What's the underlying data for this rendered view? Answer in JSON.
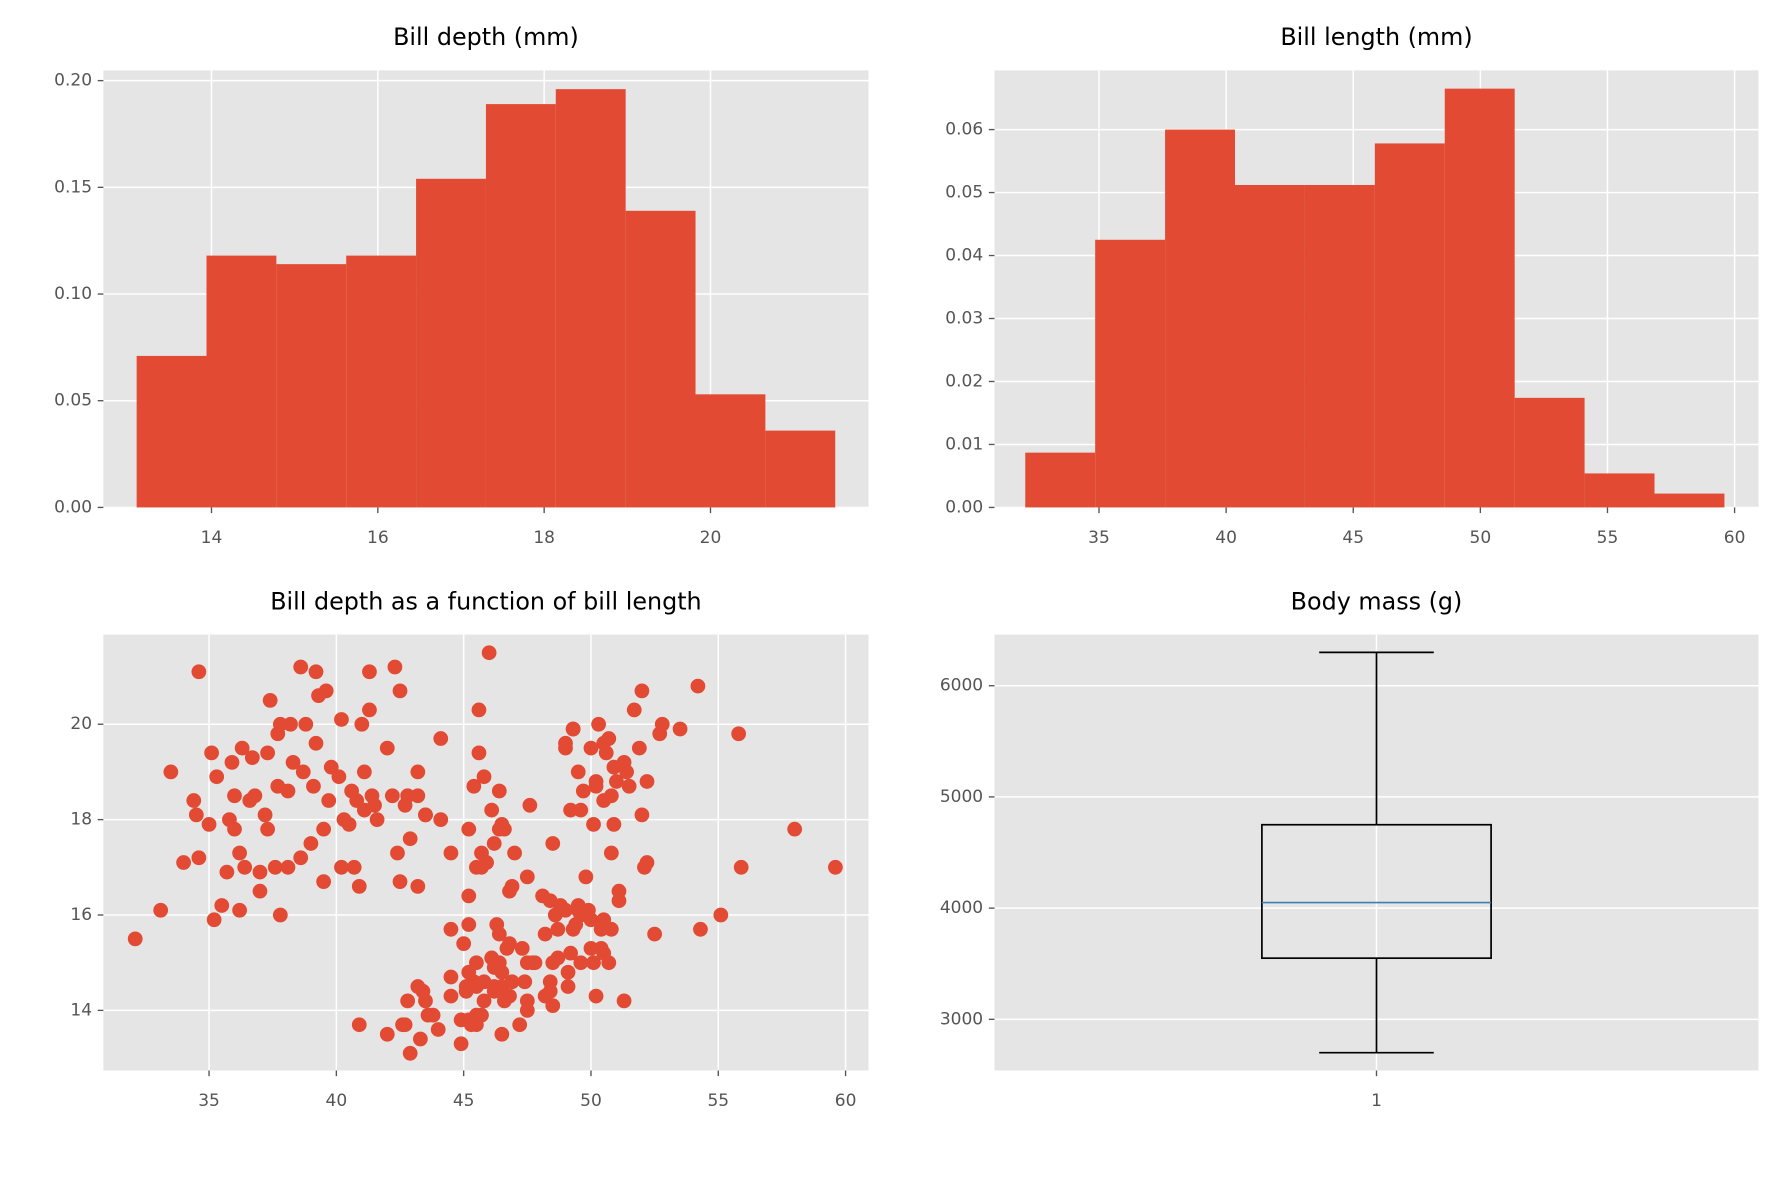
{
  "chart_data": [
    {
      "type": "histogram",
      "title": "Bill depth (mm)",
      "color": "#e24a33",
      "bins": [
        13.1,
        13.94,
        14.78,
        15.62,
        16.46,
        17.3,
        18.14,
        18.98,
        19.82,
        20.66,
        21.5
      ],
      "values": [
        0.071,
        0.118,
        0.114,
        0.118,
        0.154,
        0.189,
        0.196,
        0.139,
        0.053,
        0.036
      ],
      "xlim": [
        12.7,
        21.9
      ],
      "xticks": [
        14,
        16,
        18,
        20
      ],
      "ylim": [
        0,
        0.2048
      ],
      "yticks": [
        {
          "value": 0,
          "label": "0.00"
        },
        0.05,
        {
          "value": 0.1,
          "label": "0.10"
        },
        0.15,
        {
          "value": 0.2,
          "label": "0.20"
        }
      ],
      "grid": true
    },
    {
      "type": "histogram",
      "title": "Bill length (mm)",
      "color": "#e24a33",
      "bins": [
        32.1,
        34.85,
        37.6,
        40.35,
        43.1,
        45.85,
        48.6,
        51.35,
        54.1,
        56.85,
        59.6
      ],
      "values": [
        0.0087,
        0.0425,
        0.06,
        0.0512,
        0.0512,
        0.0578,
        0.0665,
        0.0174,
        0.0054,
        0.0022
      ],
      "xlim": [
        30.89,
        60.94
      ],
      "xticks": [
        35,
        40,
        45,
        50,
        55,
        60
      ],
      "ylim": [
        0,
        0.0694
      ],
      "yticks": [
        {
          "value": 0,
          "label": "0.00"
        },
        0.01,
        0.02,
        0.03,
        0.04,
        0.05,
        0.06
      ],
      "grid": true
    },
    {
      "type": "scatter",
      "title": "Bill depth as a function of bill length",
      "color": "#e24a33",
      "x": [
        32.1,
        33.1,
        33.5,
        34.0,
        34.4,
        34.5,
        34.6,
        34.6,
        35.0,
        35.1,
        35.2,
        35.3,
        35.5,
        35.7,
        35.8,
        35.9,
        36.0,
        36.0,
        36.2,
        36.2,
        36.3,
        36.4,
        36.6,
        36.7,
        36.8,
        37.0,
        37.0,
        37.2,
        37.3,
        37.3,
        37.4,
        37.6,
        37.7,
        37.7,
        37.8,
        37.8,
        38.1,
        38.1,
        38.2,
        38.3,
        38.6,
        38.6,
        38.7,
        38.8,
        39.0,
        39.1,
        39.2,
        39.2,
        39.3,
        39.5,
        39.5,
        39.6,
        39.7,
        39.8,
        40.1,
        40.2,
        40.2,
        40.3,
        40.5,
        40.6,
        40.7,
        40.8,
        40.9,
        41.0,
        41.1,
        41.1,
        41.3,
        41.3,
        41.4,
        41.5,
        41.6,
        42.0,
        42.2,
        42.3,
        42.4,
        42.5,
        42.7,
        42.8,
        42.9,
        43.2,
        43.2,
        43.5,
        44.1,
        44.1,
        44.5,
        45.2,
        45.4,
        45.5,
        45.6,
        45.6,
        45.8,
        46.0,
        46.1,
        46.4,
        46.5,
        46.6,
        46.8,
        47.0,
        47.5,
        48.1,
        48.5,
        49.0,
        49.2,
        49.3,
        49.5,
        49.7,
        50.0,
        50.2,
        50.3,
        50.5,
        50.6,
        50.8,
        50.9,
        51.0,
        51.3,
        51.5,
        51.7,
        52.0,
        52.0,
        52.2,
        52.7,
        53.5,
        54.2,
        55.8,
        58.0,
        59.6,
        55.9,
        50.5,
        45.1,
        46.5,
        45.4,
        46.7,
        43.3,
        46.8,
        40.9,
        49.0,
        45.5,
        48.4,
        45.8,
        49.3,
        42.0,
        49.2,
        46.2,
        48.7,
        50.2,
        46.5,
        46.3,
        42.9,
        46.1,
        44.5,
        47.8,
        48.2,
        50.0,
        47.3,
        42.8,
        49.1,
        48.4,
        42.6,
        44.0,
        48.7,
        42.7,
        49.6,
        45.3,
        49.6,
        43.6,
        45.5,
        50.5,
        44.9,
        45.2,
        46.6,
        48.5,
        45.1,
        50.1,
        46.5,
        45.0,
        43.8,
        45.5,
        43.2,
        50.4,
        45.3,
        46.2,
        45.7,
        54.3,
        45.8,
        49.8,
        46.2,
        49.5,
        43.5,
        50.7,
        47.7,
        46.4,
        48.2,
        46.5,
        46.4,
        48.6,
        47.5,
        51.1,
        45.2,
        45.2,
        49.1,
        52.5,
        47.4,
        50.0,
        44.9,
        50.8,
        43.4,
        51.3,
        47.5,
        52.1,
        47.5,
        52.2,
        45.5,
        49.5,
        44.5,
        50.8,
        49.4,
        46.9,
        48.4,
        51.1,
        48.5,
        55.1,
        44.5,
        48.8,
        47.2,
        46.8,
        50.4,
        45.2,
        49.9,
        45.9,
        46.4,
        43.2,
        50.5,
        52.8,
        42.5,
        47.6,
        46.9,
        46.2,
        50.9,
        50.1,
        49.0,
        51.4,
        45.7,
        50.7,
        49.3,
        51.9,
        45.7,
        43.5,
        49.6,
        50.2
      ],
      "y": [
        15.5,
        16.1,
        19.0,
        17.1,
        18.4,
        18.1,
        21.1,
        17.2,
        17.9,
        19.4,
        15.9,
        18.9,
        16.2,
        16.9,
        18.0,
        19.2,
        17.8,
        18.5,
        17.3,
        16.1,
        19.5,
        17.0,
        18.4,
        19.3,
        18.5,
        16.5,
        16.9,
        18.1,
        17.8,
        19.4,
        20.5,
        17.0,
        18.7,
        19.8,
        16.0,
        20.0,
        17.0,
        18.6,
        20.0,
        19.2,
        21.2,
        17.2,
        19.0,
        20.0,
        17.5,
        18.7,
        21.1,
        19.6,
        20.6,
        16.7,
        17.8,
        20.7,
        18.4,
        19.1,
        18.9,
        17.0,
        20.1,
        18.0,
        17.9,
        18.6,
        17.0,
        18.4,
        16.6,
        20.0,
        18.2,
        19.0,
        20.3,
        21.1,
        18.5,
        18.3,
        18.0,
        19.5,
        18.5,
        21.2,
        17.3,
        20.7,
        18.3,
        18.5,
        17.6,
        18.5,
        19.0,
        18.1,
        19.7,
        18.0,
        17.3,
        17.8,
        18.7,
        17.0,
        19.4,
        20.3,
        18.9,
        21.5,
        18.2,
        17.8,
        17.9,
        17.8,
        16.5,
        17.3,
        16.8,
        16.4,
        17.5,
        19.5,
        18.2,
        19.9,
        19.0,
        18.6,
        19.5,
        18.8,
        20.0,
        19.6,
        19.4,
        18.5,
        19.1,
        18.8,
        19.2,
        18.7,
        20.3,
        18.1,
        20.7,
        18.8,
        19.8,
        19.9,
        20.8,
        19.8,
        17.8,
        17.0,
        17.0,
        15.9,
        14.5,
        13.5,
        14.6,
        15.3,
        13.4,
        15.4,
        13.7,
        16.1,
        13.7,
        14.6,
        14.6,
        15.7,
        13.5,
        15.2,
        14.5,
        15.1,
        14.3,
        14.5,
        15.8,
        13.1,
        15.1,
        14.3,
        15.0,
        14.3,
        15.3,
        15.3,
        14.2,
        14.8,
        16.3,
        13.7,
        13.6,
        15.7,
        13.7,
        16.0,
        13.7,
        15.0,
        13.9,
        13.9,
        15.2,
        13.3,
        15.8,
        14.2,
        14.1,
        14.4,
        15.0,
        14.4,
        15.4,
        13.9,
        15.0,
        14.5,
        15.3,
        13.8,
        14.9,
        13.9,
        15.7,
        14.2,
        16.8,
        14.4,
        16.2,
        14.2,
        15.0,
        15.0,
        15.6,
        15.6,
        14.8,
        15.0,
        16.0,
        14.2,
        16.3,
        13.8,
        16.4,
        14.5,
        15.6,
        14.6,
        15.9,
        13.8,
        17.3,
        14.4,
        14.2,
        14.0,
        17.0,
        15.0,
        17.1,
        14.5,
        16.1,
        14.7,
        15.7,
        15.8,
        14.6,
        14.4,
        16.5,
        15.0,
        16.0,
        15.7,
        16.2,
        13.7,
        14.3,
        15.7,
        14.8,
        16.1,
        17.1,
        18.6,
        16.6,
        18.4,
        20.0,
        16.7,
        18.3,
        16.6,
        17.5,
        17.9,
        17.9,
        19.6,
        19.0,
        17.3,
        19.7,
        19.9,
        19.5,
        17.0,
        18.1,
        18.2,
        18.7
      ],
      "xlim": [
        30.85,
        60.9
      ],
      "xticks": [
        35,
        40,
        45,
        50,
        55,
        60
      ],
      "ylim": [
        12.74,
        21.88
      ],
      "yticks": [
        14,
        16,
        18,
        20
      ],
      "grid": true
    },
    {
      "type": "box",
      "title": "Body mass (g)",
      "color": "#000000",
      "median_color": "#3b7fb5",
      "stats": {
        "whislo": 2700,
        "q1": 3550,
        "med": 4050,
        "q3": 4750,
        "whishi": 6300
      },
      "xlim": [
        0.5,
        1.5
      ],
      "xticks": [
        1
      ],
      "ylim": [
        2540,
        6460
      ],
      "yticks": [
        3000,
        4000,
        5000,
        6000
      ],
      "grid": true
    }
  ]
}
